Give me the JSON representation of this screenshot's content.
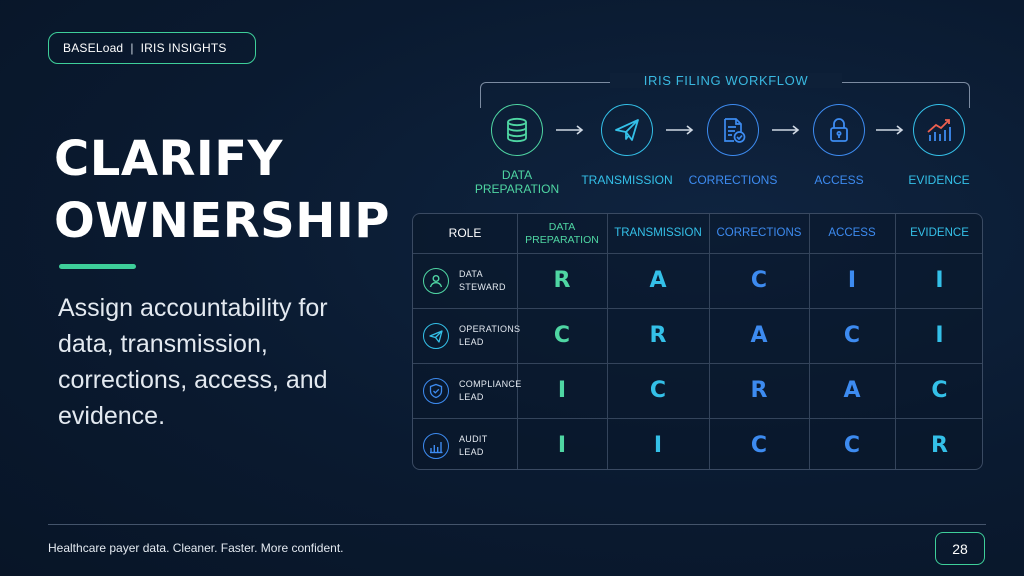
{
  "brand": {
    "left": "BASELoad",
    "separator": "|",
    "right": "IRIS INSIGHTS"
  },
  "title": {
    "line1": "CLARIFY",
    "line2": "OWNERSHIP"
  },
  "subtitle": "Assign accountability for data, transmission, corrections, access, and evidence.",
  "workflow": {
    "title": "IRIS FILING WORKFLOW",
    "steps": [
      {
        "label_line1": "DATA",
        "label_line2": "PREPARATION",
        "icon": "database-icon",
        "color": "#4fd6a3"
      },
      {
        "label_line1": "TRANSMISSION",
        "label_line2": "",
        "icon": "paper-plane-icon",
        "color": "#34c0e8"
      },
      {
        "label_line1": "CORRECTIONS",
        "label_line2": "",
        "icon": "document-check-icon",
        "color": "#3d8bf0"
      },
      {
        "label_line1": "ACCESS",
        "label_line2": "",
        "icon": "lock-icon",
        "color": "#3d8bf0"
      },
      {
        "label_line1": "EVIDENCE",
        "label_line2": "",
        "icon": "chart-trend-icon",
        "color": "#34c0e8"
      }
    ]
  },
  "raci": {
    "role_header": "ROLE",
    "columns": [
      {
        "line1": "DATA",
        "line2": "PREPARATION",
        "color": "#4fd6a3"
      },
      {
        "line1": "TRANSMISSION",
        "line2": "",
        "color": "#34c0e8"
      },
      {
        "line1": "CORRECTIONS",
        "line2": "",
        "color": "#3d8bf0"
      },
      {
        "line1": "ACCESS",
        "line2": "",
        "color": "#3d8bf0"
      },
      {
        "line1": "EVIDENCE",
        "line2": "",
        "color": "#34c0e8"
      }
    ],
    "rows": [
      {
        "role_line1": "DATA",
        "role_line2": "STEWARD",
        "icon": "person-icon",
        "icon_color": "#4fd6a3",
        "values": [
          "R",
          "A",
          "C",
          "I",
          "I"
        ]
      },
      {
        "role_line1": "OPERATIONS",
        "role_line2": "LEAD",
        "icon": "paper-plane-icon",
        "icon_color": "#34c0e8",
        "values": [
          "C",
          "R",
          "A",
          "C",
          "I"
        ]
      },
      {
        "role_line1": "COMPLIANCE",
        "role_line2": "LEAD",
        "icon": "shield-check-icon",
        "icon_color": "#3d8bf0",
        "values": [
          "I",
          "C",
          "R",
          "A",
          "C"
        ]
      },
      {
        "role_line1": "AUDIT",
        "role_line2": "LEAD",
        "icon": "bar-chart-icon",
        "icon_color": "#3d8bf0",
        "values": [
          "I",
          "I",
          "C",
          "C",
          "R"
        ]
      }
    ]
  },
  "footer": {
    "tagline": "Healthcare payer data. Cleaner. Faster. More confident.",
    "page_number": "28"
  },
  "colors": {
    "accent_green": "#3ecf9a",
    "accent_cyan": "#34c0e8",
    "accent_blue": "#3d8bf0",
    "background": "#0a1a30"
  }
}
